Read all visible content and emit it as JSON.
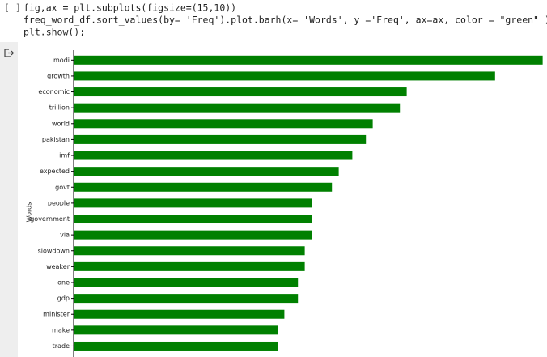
{
  "cell": {
    "prompt": "[ ]",
    "code": [
      "fig,ax = plt.subplots(figsize=(15,10))",
      "freq_word_df.sort_values(by= 'Freq').plot.barh(x= 'Words', y ='Freq', ax=ax, color = \"green\" )",
      "plt.show();"
    ]
  },
  "chart_data": {
    "type": "barh",
    "y_label": "Words",
    "categories": [
      "modi",
      "growth",
      "economic",
      "trillion",
      "world",
      "pakistan",
      "imf",
      "expected",
      "govt",
      "people",
      "government",
      "via",
      "slowdown",
      "weaker",
      "one",
      "gdp",
      "minister",
      "make",
      "trade"
    ],
    "values": [
      69,
      62,
      49,
      48,
      44,
      43,
      41,
      39,
      38,
      35,
      35,
      35,
      34,
      34,
      33,
      33,
      31,
      30,
      30
    ],
    "color": "green",
    "xlim": [
      0,
      72.45
    ]
  }
}
